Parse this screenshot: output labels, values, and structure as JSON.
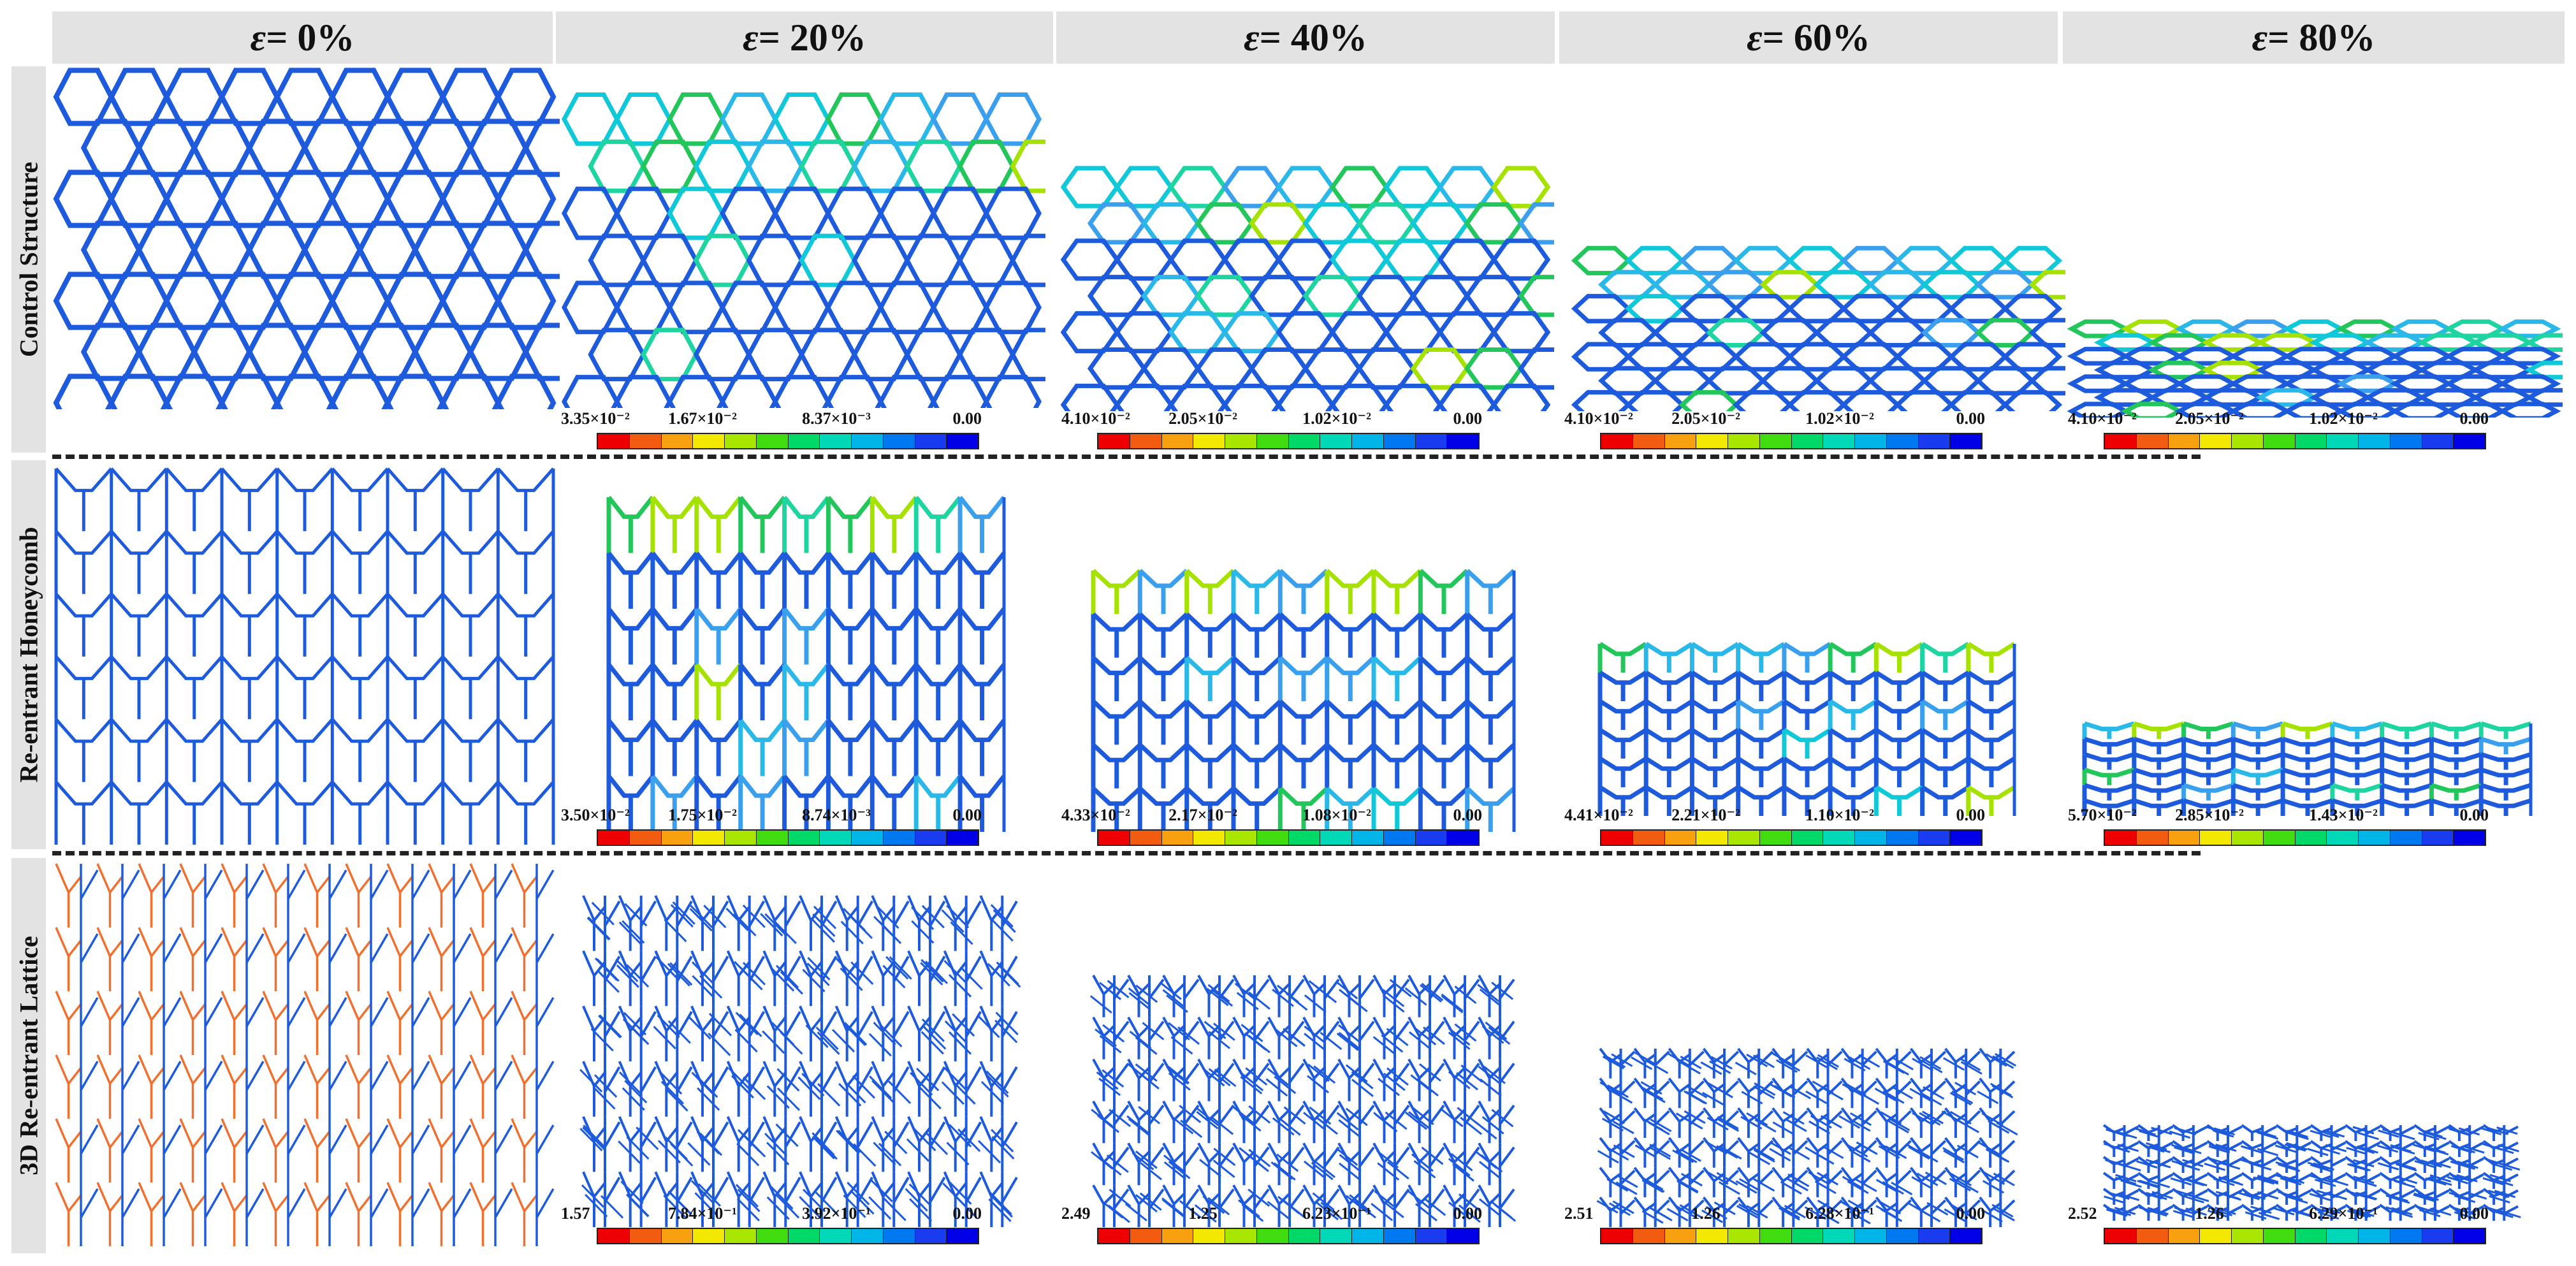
{
  "header": {
    "columns": [
      {
        "symbol": "ε",
        "label": " = 0%"
      },
      {
        "symbol": "ε",
        "label": " = 20%"
      },
      {
        "symbol": "ε",
        "label": " = 40%"
      },
      {
        "symbol": "ε",
        "label": " = 60%"
      },
      {
        "symbol": "ε",
        "label": " = 80%"
      }
    ]
  },
  "rows": [
    {
      "label": "Control Structure",
      "pattern": "hexagonal-honeycomb",
      "line_color": "#1d5bdc",
      "scales": [
        null,
        [
          "3.35×10⁻²",
          "1.67×10⁻²",
          "8.37×10⁻³",
          "0.00"
        ],
        [
          "4.10×10⁻²",
          "2.05×10⁻²",
          "1.02×10⁻²",
          "0.00"
        ],
        [
          "4.10×10⁻²",
          "2.05×10⁻²",
          "1.02×10⁻²",
          "0.00"
        ],
        [
          "4.10×10⁻²",
          "2.05×10⁻²",
          "1.02×10⁻²",
          "0.00"
        ]
      ]
    },
    {
      "label": "Re-entrant Honeycomb",
      "pattern": "re-entrant-honeycomb",
      "line_color": "#1d5bdc",
      "scales": [
        null,
        [
          "3.50×10⁻²",
          "1.75×10⁻²",
          "8.74×10⁻³",
          "0.00"
        ],
        [
          "4.33×10⁻²",
          "2.17×10⁻²",
          "1.08×10⁻²",
          "0.00"
        ],
        [
          "4.41×10⁻²",
          "2.21×10⁻²",
          "1.10×10⁻²",
          "0.00"
        ],
        [
          "5.70×10⁻²",
          "2.85×10⁻²",
          "1.43×10⁻²",
          "0.00"
        ]
      ]
    },
    {
      "label": "3D Re-entrant Lattice",
      "pattern": "3d-re-entrant-lattice",
      "line_color": "#1d5bdc",
      "front_color": "#f07030",
      "scales": [
        null,
        [
          "1.57",
          "7.84×10⁻¹",
          "3.92×10⁻¹",
          "0.00"
        ],
        [
          "2.49",
          "1.25",
          "6.23×10⁻¹",
          "0.00"
        ],
        [
          "2.51",
          "1.26",
          "6.28×10⁻¹",
          "0.00"
        ],
        [
          "2.52",
          "1.26",
          "6.29×10⁻¹",
          "0.00"
        ]
      ]
    }
  ],
  "colorbar": {
    "colors": [
      "#ee0000",
      "#f25c10",
      "#f7a010",
      "#f2e800",
      "#a8e600",
      "#40dc10",
      "#00d868",
      "#00d8b8",
      "#00b4e8",
      "#0078f0",
      "#1a3cf0",
      "#0000e6"
    ]
  }
}
